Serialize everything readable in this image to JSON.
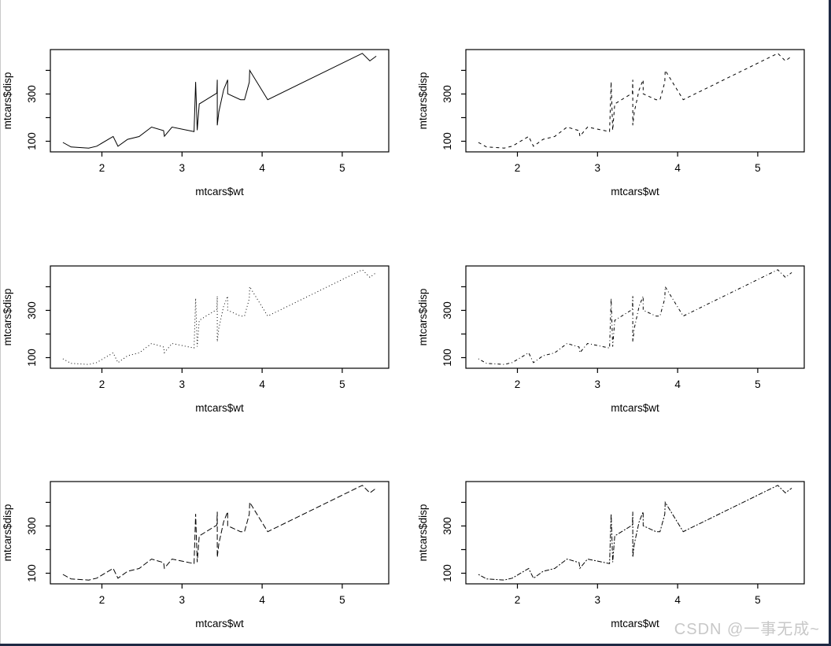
{
  "page": {
    "background_color": "#ffffff",
    "edge_left_color": "#c9c9c9",
    "edge_dark_color": "#1e2a44",
    "text_color": "#000000",
    "line_color": "#000000"
  },
  "watermark": {
    "text": "CSDN @一事无成~",
    "color": "#c8c8c8"
  },
  "chart_data": {
    "type": "line",
    "layout": "3x2-grid",
    "title": "",
    "xlabel": "mtcars$wt",
    "ylabel": "mtcars$disp",
    "xlim": [
      1.3566,
      5.5804
    ],
    "ylim": [
      55.06,
      488.04
    ],
    "xticks": [
      2,
      3,
      4,
      5
    ],
    "xtick_labels": [
      "2",
      "3",
      "4",
      "5"
    ],
    "yticks": [
      100,
      200,
      300,
      400
    ],
    "ytick_labels_shown": {
      "100": "100",
      "300": "300"
    },
    "grid": "off",
    "legend": "none",
    "x": [
      1.513,
      1.615,
      1.835,
      1.935,
      2.14,
      2.2,
      2.32,
      2.465,
      2.62,
      2.77,
      2.78,
      2.875,
      3.15,
      3.17,
      3.19,
      3.215,
      3.435,
      3.44,
      3.44,
      3.44,
      3.46,
      3.52,
      3.57,
      3.57,
      3.73,
      3.78,
      3.84,
      3.845,
      4.07,
      5.25,
      5.345,
      5.424
    ],
    "y": [
      95.1,
      75.7,
      71.1,
      79.0,
      120.3,
      78.7,
      108.0,
      120.1,
      160.0,
      145.0,
      121.0,
      160.0,
      140.8,
      351.0,
      146.7,
      258.0,
      304.0,
      360.0,
      167.6,
      167.6,
      225.0,
      318.0,
      360.0,
      301.0,
      275.8,
      275.8,
      350.0,
      400.0,
      275.8,
      472.0,
      440.0,
      460.0
    ],
    "panels": [
      {
        "lty": 1,
        "line_type": "solid",
        "dash": ""
      },
      {
        "lty": 2,
        "line_type": "dashed",
        "dash": "4,4"
      },
      {
        "lty": 3,
        "line_type": "dotted",
        "dash": "1,3"
      },
      {
        "lty": 4,
        "line_type": "dotdash",
        "dash": "1,3,4,3"
      },
      {
        "lty": 5,
        "line_type": "longdash",
        "dash": "7,3"
      },
      {
        "lty": 6,
        "line_type": "twodash",
        "dash": "2,2,6,2"
      }
    ]
  }
}
